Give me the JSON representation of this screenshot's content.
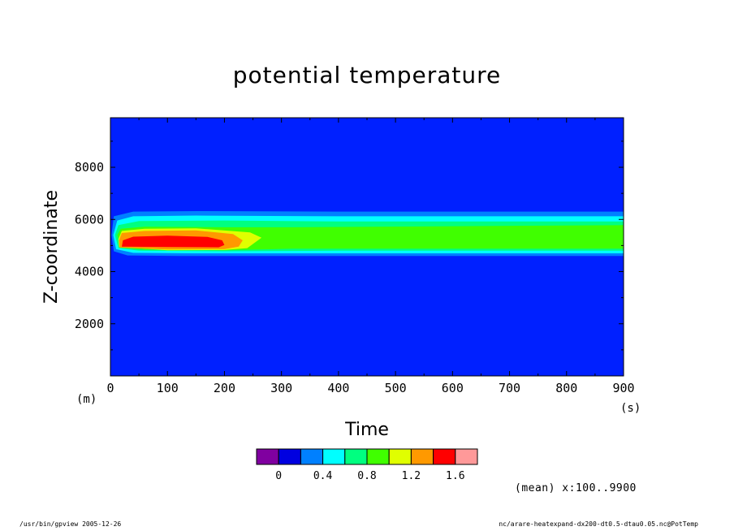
{
  "chart_data": {
    "type": "heatmap",
    "title": "potential temperature",
    "xlabel": "Time",
    "ylabel": "Z-coordinate",
    "x_unit": "(s)",
    "y_unit": "(m)",
    "xlim": [
      0,
      900
    ],
    "ylim": [
      0,
      9900
    ],
    "x_ticks": [
      "0",
      "100",
      "200",
      "300",
      "400",
      "500",
      "600",
      "700",
      "800",
      "900"
    ],
    "y_ticks": [
      "2000",
      "4000",
      "6000",
      "8000"
    ],
    "x_tick_values": [
      0,
      100,
      200,
      300,
      400,
      500,
      600,
      700,
      800,
      900
    ],
    "y_tick_values": [
      2000,
      4000,
      6000,
      8000
    ],
    "colorbar": {
      "levels": [
        -0.2,
        0,
        0.2,
        0.4,
        0.6,
        0.8,
        1.0,
        1.2,
        1.4,
        1.6,
        1.8
      ],
      "colors": [
        "#8000a0",
        "#0000e0",
        "#0080ff",
        "#00ffff",
        "#00ff80",
        "#40ff00",
        "#e0ff00",
        "#ff9900",
        "#ff0000",
        "#ff9999"
      ],
      "labels": [
        "0",
        "0.4",
        "0.8",
        "1.2",
        "1.6"
      ],
      "label_values": [
        0,
        0.4,
        0.8,
        1.2,
        1.6
      ]
    },
    "background_color": "#0020ff",
    "contours": [
      {
        "level_index": 2,
        "points": [
          [
            6,
            4780
          ],
          [
            30,
            4620
          ],
          [
            120,
            4600
          ],
          [
            400,
            4600
          ],
          [
            900,
            4600
          ],
          [
            900,
            6300
          ],
          [
            400,
            6300
          ],
          [
            150,
            6320
          ],
          [
            40,
            6300
          ],
          [
            6,
            6120
          ],
          [
            2,
            5400
          ]
        ]
      },
      {
        "level_index": 3,
        "points": [
          [
            10,
            4860
          ],
          [
            40,
            4720
          ],
          [
            150,
            4700
          ],
          [
            400,
            4700
          ],
          [
            900,
            4700
          ],
          [
            900,
            6120
          ],
          [
            400,
            6120
          ],
          [
            150,
            6150
          ],
          [
            40,
            6120
          ],
          [
            12,
            5960
          ],
          [
            5,
            5400
          ]
        ]
      },
      {
        "level_index": 4,
        "points": [
          [
            14,
            4900
          ],
          [
            50,
            4800
          ],
          [
            200,
            4780
          ],
          [
            400,
            4800
          ],
          [
            900,
            4800
          ],
          [
            900,
            5920
          ],
          [
            400,
            5920
          ],
          [
            200,
            5960
          ],
          [
            50,
            5940
          ],
          [
            14,
            5780
          ],
          [
            8,
            5400
          ]
        ]
      },
      {
        "level_index": 5,
        "points": [
          [
            18,
            4920
          ],
          [
            60,
            4840
          ],
          [
            200,
            4820
          ],
          [
            320,
            4880
          ],
          [
            900,
            4880
          ],
          [
            900,
            5780
          ],
          [
            320,
            5700
          ],
          [
            200,
            5700
          ],
          [
            60,
            5720
          ],
          [
            18,
            5640
          ],
          [
            12,
            5400
          ]
        ]
      },
      {
        "level_index": 6,
        "points": [
          [
            15,
            4950
          ],
          [
            100,
            4820
          ],
          [
            200,
            4830
          ],
          [
            240,
            4900
          ],
          [
            265,
            5300
          ],
          [
            245,
            5500
          ],
          [
            150,
            5660
          ],
          [
            60,
            5640
          ],
          [
            20,
            5560
          ],
          [
            14,
            5250
          ]
        ]
      },
      {
        "level_index": 7,
        "points": [
          [
            16,
            4920
          ],
          [
            100,
            4850
          ],
          [
            200,
            4860
          ],
          [
            225,
            4960
          ],
          [
            232,
            5200
          ],
          [
            215,
            5440
          ],
          [
            150,
            5580
          ],
          [
            60,
            5560
          ],
          [
            20,
            5480
          ],
          [
            15,
            5200
          ]
        ]
      },
      {
        "level_index": 8,
        "points": [
          [
            20,
            4960
          ],
          [
            100,
            4940
          ],
          [
            190,
            4930
          ],
          [
            200,
            5020
          ],
          [
            196,
            5200
          ],
          [
            170,
            5330
          ],
          [
            100,
            5380
          ],
          [
            40,
            5340
          ],
          [
            22,
            5200
          ]
        ]
      }
    ],
    "mean_note": "(mean) x:100..9900"
  },
  "footer": {
    "left": "/usr/bin/gpview   2005-12-26",
    "right": "nc/arare-heatexpand-dx200-dt0.5-dtau0.05.nc@PotTemp"
  }
}
